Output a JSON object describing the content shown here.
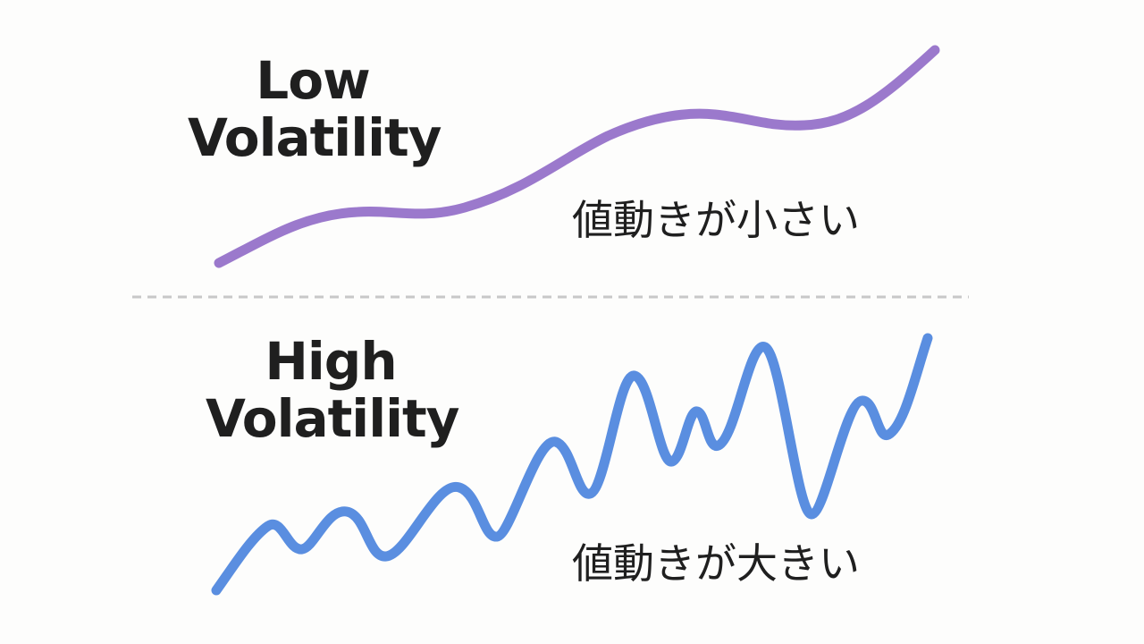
{
  "low_volatility": {
    "title_line1": "Low",
    "title_line2": "Volatility",
    "caption": "値動きが小さい",
    "line_color": "#9b79cc"
  },
  "high_volatility": {
    "title_line1": "High",
    "title_line2": "Volatility",
    "caption": "値動きが大きい",
    "line_color": "#5a8ee0"
  },
  "divider": {
    "style": "dashed",
    "color": "#c8c8c8"
  }
}
